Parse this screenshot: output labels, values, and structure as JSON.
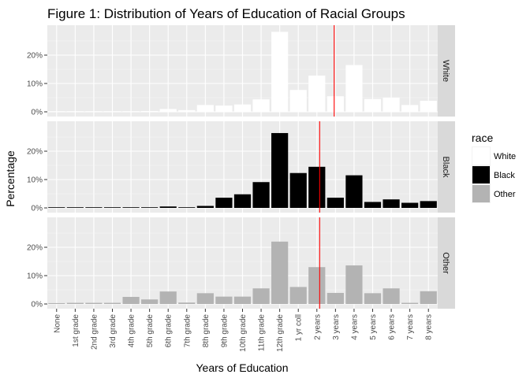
{
  "chart_data": {
    "type": "bar",
    "title": "Figure 1: Distribution of Years of Education of Racial Groups",
    "xlabel": "Years of Education",
    "ylabel": "Percentage",
    "categories": [
      "None",
      "1st grade",
      "2nd grade",
      "3rd grade",
      "4th grade",
      "5th grade",
      "6th grade",
      "7th grade",
      "8th grade",
      "9th grade",
      "10th grade",
      "11th grade",
      "12th grade",
      "1 yr coll",
      "2 years",
      "3 years",
      "4 years",
      "5 years",
      "6 years",
      "7 years",
      "8 years"
    ],
    "ylim": [
      0,
      0.3
    ],
    "y_ticks": [
      0,
      0.1,
      0.2
    ],
    "y_tick_labels": [
      "0%",
      "10%",
      "20%"
    ],
    "grid": true,
    "legend_title": "race",
    "legend_position": "right",
    "reference_line_color": "#ff0000",
    "series": [
      {
        "name": "White",
        "color": "#ffffff",
        "values": [
          0.001,
          0.001,
          0.001,
          0.002,
          0.002,
          0.003,
          0.01,
          0.006,
          0.024,
          0.022,
          0.026,
          0.044,
          0.282,
          0.077,
          0.128,
          0.055,
          0.165,
          0.045,
          0.05,
          0.024,
          0.039
        ],
        "reference_line_x": 14.93
      },
      {
        "name": "Black",
        "color": "#000000",
        "values": [
          0.002,
          0.0,
          0.0,
          0.002,
          0.0,
          0.0,
          0.005,
          0.002,
          0.007,
          0.036,
          0.048,
          0.091,
          0.264,
          0.123,
          0.145,
          0.036,
          0.115,
          0.021,
          0.03,
          0.018,
          0.024
        ],
        "reference_line_x": 14.15
      },
      {
        "name": "Other",
        "color": "#b3b3b3",
        "values": [
          0.003,
          0.004,
          0.004,
          0.004,
          0.025,
          0.016,
          0.044,
          0.005,
          0.038,
          0.026,
          0.026,
          0.055,
          0.22,
          0.06,
          0.13,
          0.039,
          0.136,
          0.038,
          0.055,
          0.004,
          0.045
        ],
        "reference_line_x": 14.15
      }
    ]
  }
}
